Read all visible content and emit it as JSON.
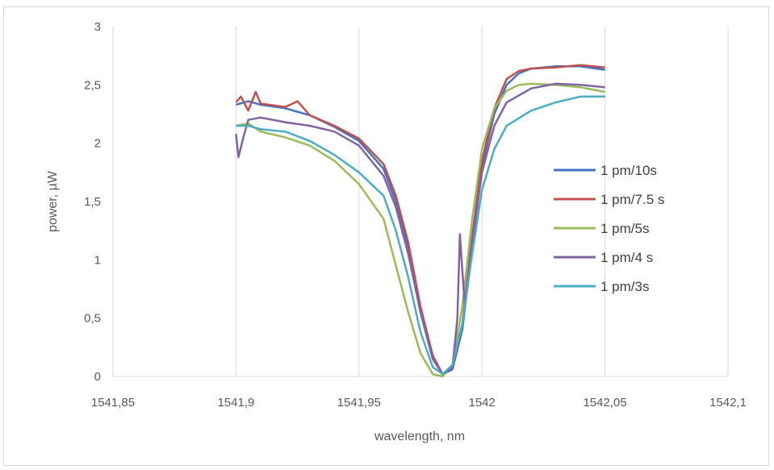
{
  "chart_data": {
    "type": "line",
    "title": "",
    "xlabel": "wavelength, nm",
    "ylabel": "power, µW",
    "xlim": [
      1541.85,
      1542.1
    ],
    "ylim": [
      0,
      3
    ],
    "x_ticks": [
      "1541,85",
      "1541,9",
      "1541,95",
      "1542",
      "1542,05",
      "1542,1"
    ],
    "y_ticks": [
      "0",
      "0,5",
      "1",
      "1,5",
      "2",
      "2,5",
      "3"
    ],
    "grid": "vertical",
    "legend_position": "right",
    "series": [
      {
        "name": "1 pm/10s",
        "color": "#4472c4",
        "points": [
          [
            1541.9,
            2.33
          ],
          [
            1541.905,
            2.36
          ],
          [
            1541.91,
            2.33
          ],
          [
            1541.92,
            2.3
          ],
          [
            1541.93,
            2.24
          ],
          [
            1541.94,
            2.14
          ],
          [
            1541.95,
            2.02
          ],
          [
            1541.96,
            1.78
          ],
          [
            1541.965,
            1.5
          ],
          [
            1541.97,
            1.1
          ],
          [
            1541.975,
            0.55
          ],
          [
            1541.98,
            0.15
          ],
          [
            1541.984,
            0.02
          ],
          [
            1541.988,
            0.06
          ],
          [
            1541.992,
            0.4
          ],
          [
            1541.996,
            1.1
          ],
          [
            1542.0,
            1.8
          ],
          [
            1542.005,
            2.25
          ],
          [
            1542.01,
            2.5
          ],
          [
            1542.015,
            2.6
          ],
          [
            1542.02,
            2.64
          ],
          [
            1542.03,
            2.66
          ],
          [
            1542.04,
            2.66
          ],
          [
            1542.05,
            2.63
          ]
        ]
      },
      {
        "name": "1 pm/7.5 s",
        "color": "#c0504d",
        "points": [
          [
            1541.9,
            2.35
          ],
          [
            1541.902,
            2.4
          ],
          [
            1541.905,
            2.28
          ],
          [
            1541.908,
            2.44
          ],
          [
            1541.91,
            2.34
          ],
          [
            1541.92,
            2.31
          ],
          [
            1541.925,
            2.36
          ],
          [
            1541.93,
            2.24
          ],
          [
            1541.94,
            2.15
          ],
          [
            1541.95,
            2.04
          ],
          [
            1541.96,
            1.82
          ],
          [
            1541.965,
            1.55
          ],
          [
            1541.97,
            1.15
          ],
          [
            1541.975,
            0.6
          ],
          [
            1541.98,
            0.18
          ],
          [
            1541.984,
            0.02
          ],
          [
            1541.988,
            0.08
          ],
          [
            1541.992,
            0.45
          ],
          [
            1541.996,
            1.2
          ],
          [
            1542.0,
            1.85
          ],
          [
            1542.005,
            2.3
          ],
          [
            1542.01,
            2.55
          ],
          [
            1542.015,
            2.62
          ],
          [
            1542.02,
            2.64
          ],
          [
            1542.03,
            2.65
          ],
          [
            1542.04,
            2.67
          ],
          [
            1542.05,
            2.65
          ]
        ]
      },
      {
        "name": "1 pm/5s",
        "color": "#9bbb59",
        "points": [
          [
            1541.9,
            2.15
          ],
          [
            1541.905,
            2.17
          ],
          [
            1541.91,
            2.1
          ],
          [
            1541.92,
            2.05
          ],
          [
            1541.93,
            1.98
          ],
          [
            1541.94,
            1.85
          ],
          [
            1541.95,
            1.65
          ],
          [
            1541.96,
            1.35
          ],
          [
            1541.965,
            0.95
          ],
          [
            1541.97,
            0.55
          ],
          [
            1541.975,
            0.2
          ],
          [
            1541.98,
            0.02
          ],
          [
            1541.984,
            0.0
          ],
          [
            1541.988,
            0.1
          ],
          [
            1541.992,
            0.6
          ],
          [
            1541.996,
            1.35
          ],
          [
            1542.0,
            1.95
          ],
          [
            1542.005,
            2.3
          ],
          [
            1542.01,
            2.45
          ],
          [
            1542.015,
            2.5
          ],
          [
            1542.02,
            2.51
          ],
          [
            1542.03,
            2.5
          ],
          [
            1542.04,
            2.48
          ],
          [
            1542.05,
            2.44
          ]
        ]
      },
      {
        "name": "1 pm/4 s",
        "color": "#8064a2",
        "points": [
          [
            1541.9,
            2.08
          ],
          [
            1541.901,
            1.88
          ],
          [
            1541.903,
            2.05
          ],
          [
            1541.905,
            2.2
          ],
          [
            1541.91,
            2.22
          ],
          [
            1541.92,
            2.18
          ],
          [
            1541.93,
            2.15
          ],
          [
            1541.94,
            2.1
          ],
          [
            1541.95,
            1.98
          ],
          [
            1541.96,
            1.72
          ],
          [
            1541.965,
            1.45
          ],
          [
            1541.97,
            1.05
          ],
          [
            1541.975,
            0.55
          ],
          [
            1541.98,
            0.15
          ],
          [
            1541.984,
            0.02
          ],
          [
            1541.988,
            0.08
          ],
          [
            1541.99,
            0.5
          ],
          [
            1541.991,
            1.22
          ],
          [
            1541.993,
            0.6
          ],
          [
            1541.996,
            1.15
          ],
          [
            1542.0,
            1.75
          ],
          [
            1542.005,
            2.15
          ],
          [
            1542.01,
            2.35
          ],
          [
            1542.02,
            2.47
          ],
          [
            1542.03,
            2.51
          ],
          [
            1542.04,
            2.5
          ],
          [
            1542.05,
            2.48
          ]
        ]
      },
      {
        "name": "1 pm/3s",
        "color": "#4bacc6",
        "points": [
          [
            1541.9,
            2.15
          ],
          [
            1541.905,
            2.15
          ],
          [
            1541.91,
            2.12
          ],
          [
            1541.92,
            2.1
          ],
          [
            1541.93,
            2.02
          ],
          [
            1541.94,
            1.9
          ],
          [
            1541.95,
            1.75
          ],
          [
            1541.96,
            1.55
          ],
          [
            1541.965,
            1.25
          ],
          [
            1541.97,
            0.85
          ],
          [
            1541.975,
            0.38
          ],
          [
            1541.98,
            0.08
          ],
          [
            1541.984,
            0.02
          ],
          [
            1541.988,
            0.1
          ],
          [
            1541.992,
            0.45
          ],
          [
            1541.996,
            1.05
          ],
          [
            1542.0,
            1.6
          ],
          [
            1542.005,
            1.95
          ],
          [
            1542.01,
            2.15
          ],
          [
            1542.02,
            2.28
          ],
          [
            1542.03,
            2.35
          ],
          [
            1542.04,
            2.4
          ],
          [
            1542.05,
            2.4
          ]
        ]
      }
    ]
  }
}
